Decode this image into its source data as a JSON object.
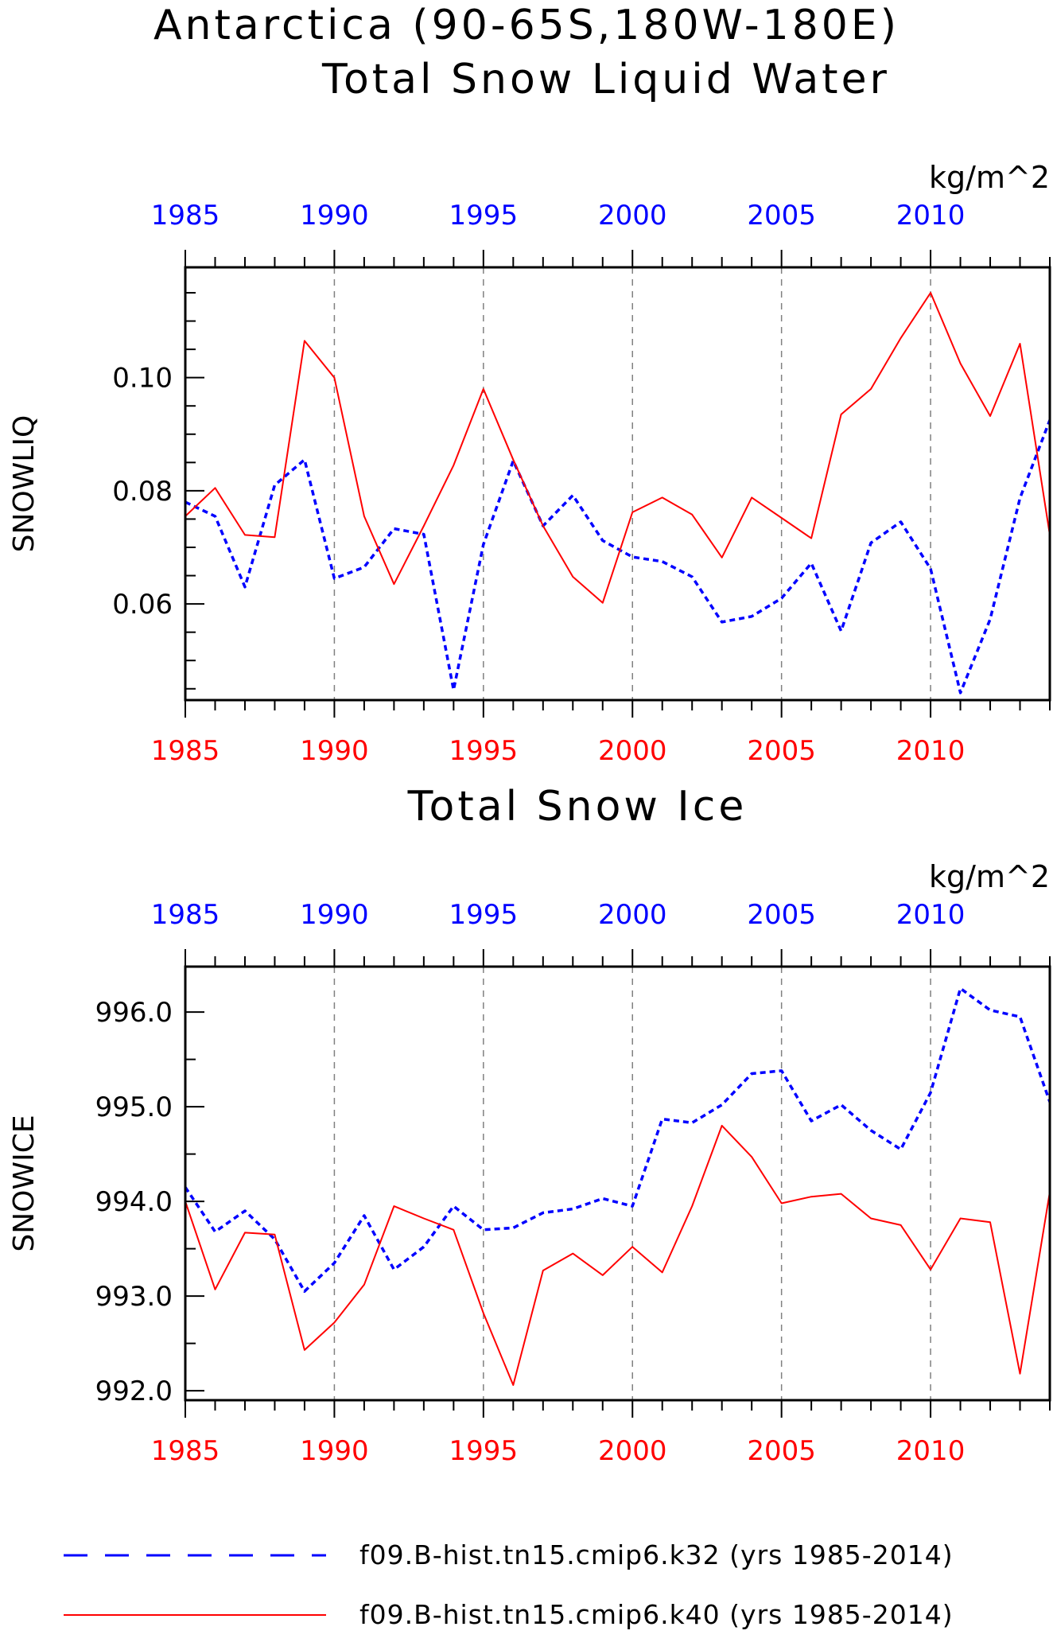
{
  "figure_title": "Antarctica (90-65S,180W-180E)",
  "legend": [
    {
      "label": "f09.B-hist.tn15.cmip6.k32 (yrs 1985-2014)",
      "color": "#0000ff",
      "dash": "dashed"
    },
    {
      "label": "f09.B-hist.tn15.cmip6.k40 (yrs 1985-2014)",
      "color": "#ff0000",
      "dash": "solid"
    }
  ],
  "colors": {
    "k32": "#0000ff",
    "k40": "#ff0000",
    "grid": "#808080",
    "axes": "#000000"
  },
  "chart_data": [
    {
      "type": "line",
      "title": "Total Snow Liquid Water",
      "units": "kg/m^2",
      "ylabel": "SNOWLIQ",
      "xlim": [
        1985,
        2014
      ],
      "ylim": [
        0.043,
        0.1195
      ],
      "xticks_major": [
        1985,
        1990,
        1995,
        2000,
        2005,
        2010
      ],
      "xtick_labels": [
        "1985",
        "1990",
        "1995",
        "2000",
        "2005",
        "2010"
      ],
      "yticks_major": [
        0.06,
        0.08,
        0.1
      ],
      "ytick_labels": [
        "0.06",
        "0.08",
        "0.10"
      ],
      "yticks_minor": [
        0.045,
        0.05,
        0.055,
        0.065,
        0.07,
        0.075,
        0.085,
        0.09,
        0.095,
        0.105,
        0.11,
        0.115
      ],
      "grid": "vertical dashed at major x ticks",
      "x": [
        1985,
        1986,
        1987,
        1988,
        1989,
        1990,
        1991,
        1992,
        1993,
        1994,
        1995,
        1996,
        1997,
        1998,
        1999,
        2000,
        2001,
        2002,
        2003,
        2004,
        2005,
        2006,
        2007,
        2008,
        2009,
        2010,
        2011,
        2012,
        2013,
        2014
      ],
      "series": [
        {
          "name": "f09.B-hist.tn15.cmip6.k32 (yrs 1985-2014)",
          "color": "#0000ff",
          "dash": "dashed",
          "values": [
            0.078,
            0.0755,
            0.063,
            0.081,
            0.0855,
            0.0645,
            0.0665,
            0.0733,
            0.0723,
            0.0448,
            0.0705,
            0.0853,
            0.0738,
            0.0792,
            0.0712,
            0.0683,
            0.0675,
            0.0648,
            0.0568,
            0.0578,
            0.061,
            0.0672,
            0.0552,
            0.0708,
            0.0745,
            0.0662,
            0.0443,
            0.0573,
            0.0787,
            0.0925
          ]
        },
        {
          "name": "f09.B-hist.tn15.cmip6.k40 (yrs 1985-2014)",
          "color": "#ff0000",
          "dash": "solid",
          "values": [
            0.0755,
            0.0805,
            0.0722,
            0.0718,
            0.1065,
            0.1,
            0.0755,
            0.0635,
            0.0738,
            0.0845,
            0.098,
            0.0855,
            0.0738,
            0.0648,
            0.0602,
            0.0762,
            0.0788,
            0.0758,
            0.0682,
            0.0788,
            0.0752,
            0.0716,
            0.0935,
            0.098,
            0.107,
            0.115,
            0.1025,
            0.0932,
            0.106,
            0.0722
          ]
        }
      ]
    },
    {
      "type": "line",
      "title": "Total Snow Ice",
      "units": "kg/m^2",
      "ylabel": "SNOWICE",
      "xlim": [
        1985,
        2014
      ],
      "ylim": [
        991.9,
        996.48
      ],
      "xticks_major": [
        1985,
        1990,
        1995,
        2000,
        2005,
        2010
      ],
      "xtick_labels": [
        "1985",
        "1990",
        "1995",
        "2000",
        "2005",
        "2010"
      ],
      "yticks_major": [
        992.0,
        993.0,
        994.0,
        995.0,
        996.0
      ],
      "ytick_labels": [
        "992.0",
        "993.0",
        "994.0",
        "995.0",
        "996.0"
      ],
      "yticks_minor": [
        992.5,
        993.5,
        994.5,
        995.5
      ],
      "grid": "vertical dashed at major x ticks",
      "x": [
        1985,
        1986,
        1987,
        1988,
        1989,
        1990,
        1991,
        1992,
        1993,
        1994,
        1995,
        1996,
        1997,
        1998,
        1999,
        2000,
        2001,
        2002,
        2003,
        2004,
        2005,
        2006,
        2007,
        2008,
        2009,
        2010,
        2011,
        2012,
        2013,
        2014
      ],
      "series": [
        {
          "name": "f09.B-hist.tn15.cmip6.k32 (yrs 1985-2014)",
          "color": "#0000ff",
          "dash": "dashed",
          "values": [
            994.15,
            993.68,
            993.9,
            993.6,
            993.05,
            993.35,
            993.85,
            993.28,
            993.52,
            993.95,
            993.7,
            993.72,
            993.88,
            993.92,
            994.03,
            993.95,
            994.87,
            994.83,
            995.02,
            995.35,
            995.38,
            994.85,
            995.02,
            994.75,
            994.55,
            995.15,
            996.25,
            996.02,
            995.95,
            995.05
          ]
        },
        {
          "name": "f09.B-hist.tn15.cmip6.k40 (yrs 1985-2014)",
          "color": "#ff0000",
          "dash": "solid",
          "values": [
            994.0,
            993.07,
            993.67,
            993.65,
            992.43,
            992.72,
            993.12,
            993.95,
            993.82,
            993.7,
            992.82,
            992.06,
            993.27,
            993.45,
            993.22,
            993.52,
            993.25,
            993.95,
            994.8,
            994.47,
            993.98,
            994.05,
            994.08,
            993.82,
            993.75,
            993.28,
            993.82,
            993.78,
            992.18,
            994.1
          ]
        }
      ]
    }
  ]
}
